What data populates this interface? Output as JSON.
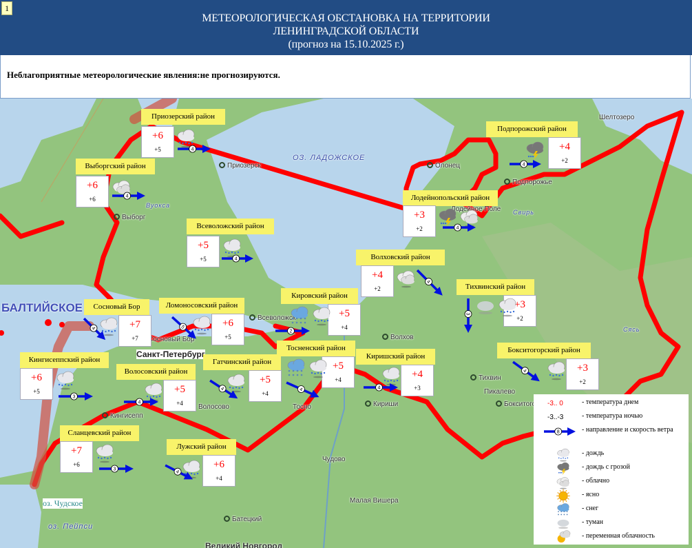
{
  "page_number": "1",
  "header": {
    "line1": "МЕТЕОРОЛОГИЧЕСКАЯ ОБСТАНОВКА НА ТЕРРИТОРИИ",
    "line2": "ЛЕНИНГРАДСКОЙ ОБЛАСТИ",
    "line3": "(прогноз на 15.10.2025 г.)"
  },
  "notice": "Неблагоприятные метеорологические явления:не прогнозируются.",
  "colors": {
    "header_bg": "#224c84",
    "label_bg": "#f8f36a",
    "day_temp": "#ff0000",
    "wind_arrow": "#0010e0",
    "border": "#ff0000"
  },
  "map_labels": [
    "ОЗ. ЛАДОЖСКОЕ",
    "БАЛТИЙСКОЕ",
    "оз. Чудское",
    "оз. Пейпси",
    "Приозерск",
    "Выборг",
    "Вуокса",
    "Олонец",
    "Подпорожье",
    "Лодейное Поле",
    "Свирь",
    "Шелтозеро",
    "Всеволожск",
    "Санкт-Петербург",
    "Сосновый Бор",
    "Волхов",
    "Кириши",
    "Тихвин",
    "Пикалево",
    "Бокситогорск",
    "Кингисепп",
    "Тосно",
    "Чудово",
    "Малая Вишера",
    "Батецкий",
    "Великий Новгород",
    "Волосово",
    "Сясь"
  ],
  "districts": [
    {
      "name": "Приозерский район",
      "day": "+6",
      "night": "+5",
      "weather": [
        "rain"
      ],
      "wind_speed": "4",
      "wind_direction": "E"
    },
    {
      "name": "Выборгский район",
      "day": "+6",
      "night": "+6",
      "weather": [
        "cloudy"
      ],
      "wind_speed": "4",
      "wind_direction": "E"
    },
    {
      "name": "Всеволожский район",
      "day": "+5",
      "night": "+5",
      "weather": [
        "rain"
      ],
      "wind_speed": "4",
      "wind_direction": "E"
    },
    {
      "name": "Сосновый Бор",
      "day": "+7",
      "night": "+7",
      "weather": [
        "rain"
      ],
      "wind_speed": "4",
      "wind_direction": "SE"
    },
    {
      "name": "Ломоносовский район",
      "day": "+6",
      "night": "+5",
      "weather": [
        "rain"
      ],
      "wind_speed": "5",
      "wind_direction": "SE"
    },
    {
      "name": "Кировский район",
      "day": "+5",
      "night": "+4",
      "weather": [
        "snow",
        "rain"
      ],
      "wind_speed": "2",
      "wind_direction": "E"
    },
    {
      "name": "Тосненский район",
      "day": "+5",
      "night": "+4",
      "weather": [
        "snow",
        "rain"
      ],
      "wind_speed": "4",
      "wind_direction": "SE"
    },
    {
      "name": "Волховский район",
      "day": "+4",
      "night": "+2",
      "weather": [
        "cloudy"
      ],
      "wind_speed": "4",
      "wind_direction": "SE"
    },
    {
      "name": "Киришский район",
      "day": "+4",
      "night": "+3",
      "weather": [
        "rain"
      ],
      "wind_speed": "4",
      "wind_direction": "E"
    },
    {
      "name": "Тихвинский район",
      "day": "+3",
      "night": "+2",
      "weather": [
        "fog",
        "rain"
      ],
      "wind_speed": "3",
      "wind_direction": "S"
    },
    {
      "name": "Подпорожский район",
      "day": "+4",
      "night": "+2",
      "weather": [
        "thunder"
      ],
      "wind_speed": "4",
      "wind_direction": "E"
    },
    {
      "name": "Лодейнопольский район",
      "day": "+3",
      "night": "+2",
      "weather": [
        "thunder",
        "cloudy"
      ],
      "wind_speed": "4",
      "wind_direction": "E"
    },
    {
      "name": "Кингисеппский район",
      "day": "+6",
      "night": "+5",
      "weather": [
        "rain"
      ],
      "wind_speed": "3",
      "wind_direction": "E"
    },
    {
      "name": "Волосовский район",
      "day": "+5",
      "night": "+4",
      "weather": [
        "rain"
      ],
      "wind_speed": "4",
      "wind_direction": "E"
    },
    {
      "name": "Гатчинский район",
      "day": "+5",
      "night": "+4",
      "weather": [
        "rain"
      ],
      "wind_speed": "4",
      "wind_direction": "SE"
    },
    {
      "name": "Сланцевский район",
      "day": "+7",
      "night": "+6",
      "weather": [
        "rain"
      ],
      "wind_speed": "3",
      "wind_direction": "E"
    },
    {
      "name": "Лужский район",
      "day": "+6",
      "night": "+4",
      "weather": [
        "rain"
      ],
      "wind_speed": "4",
      "wind_direction": "SE"
    },
    {
      "name": "Бокситогорский район",
      "day": "+3",
      "night": "+2",
      "weather": [
        "rain"
      ],
      "wind_speed": "4",
      "wind_direction": "SE"
    }
  ],
  "legend": {
    "day_sample": "-3.. 0",
    "night_sample": "-3..-3",
    "wind_sample": "8",
    "items": [
      {
        "icon": "day",
        "label": "- температура днем"
      },
      {
        "icon": "night",
        "label": "- температура ночью"
      },
      {
        "icon": "wind",
        "label": "- направление и скорость ветра"
      },
      {
        "icon": "rain",
        "label": "- дождь"
      },
      {
        "icon": "thunder",
        "label": "- дождь с грозой"
      },
      {
        "icon": "cloudy",
        "label": "- облачно"
      },
      {
        "icon": "sun",
        "label": "- ясно"
      },
      {
        "icon": "snow",
        "label": "- снег"
      },
      {
        "icon": "fog",
        "label": "- туман"
      },
      {
        "icon": "partly",
        "label": "- переменная облачность"
      }
    ]
  }
}
